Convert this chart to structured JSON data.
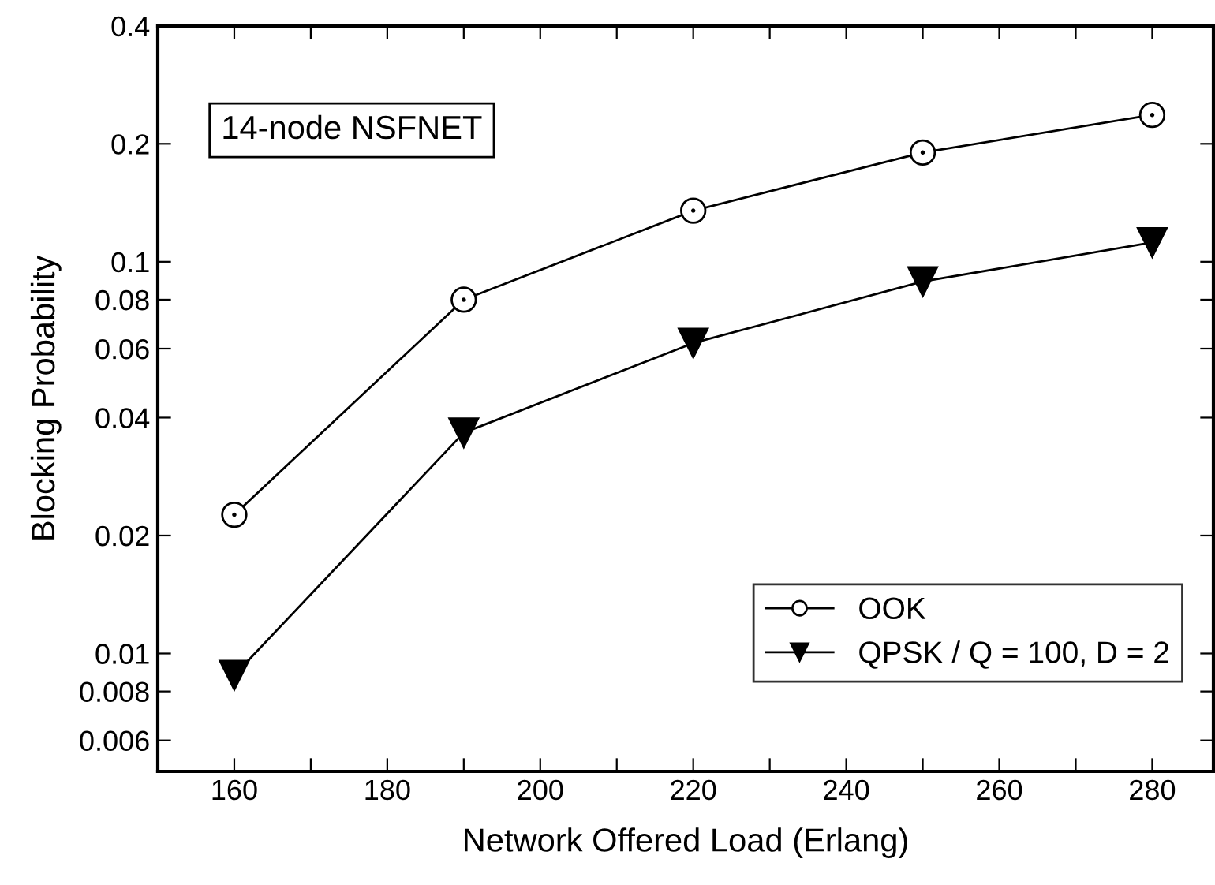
{
  "chart_data": {
    "type": "line",
    "xlabel": "Network Offered Load (Erlang)",
    "ylabel": "Blocking Probability",
    "annotations": [
      "14-node NSFNET"
    ],
    "x": [
      160,
      190,
      220,
      250,
      280
    ],
    "series": [
      {
        "name": "OOK",
        "color": "#000000",
        "marker": "circle",
        "values": [
          0.0226,
          0.08,
          0.135,
          0.19,
          0.237
        ]
      },
      {
        "name": "QPSK / Q = 100, D = 2",
        "color": "#000000",
        "marker": "triangle",
        "values": [
          0.0088,
          0.0366,
          0.062,
          0.089,
          0.112
        ]
      }
    ],
    "log": "y",
    "xlim": [
      150,
      288
    ],
    "ylim": [
      0.005,
      0.4
    ],
    "xticks": [
      160,
      {
        "value": 170,
        "label": null
      },
      180,
      {
        "value": 190,
        "label": null
      },
      200,
      {
        "value": 210,
        "label": null
      },
      220,
      {
        "value": 230,
        "label": null
      },
      240,
      {
        "value": 250,
        "label": null
      },
      260,
      {
        "value": 270,
        "label": null
      },
      280
    ],
    "yticks": [
      0.006,
      0.008,
      0.01,
      0.02,
      0.04,
      0.06,
      0.08,
      0.1,
      0.2,
      0.4
    ],
    "grid": false,
    "legend": "bottom right",
    "line_style": "solid"
  }
}
